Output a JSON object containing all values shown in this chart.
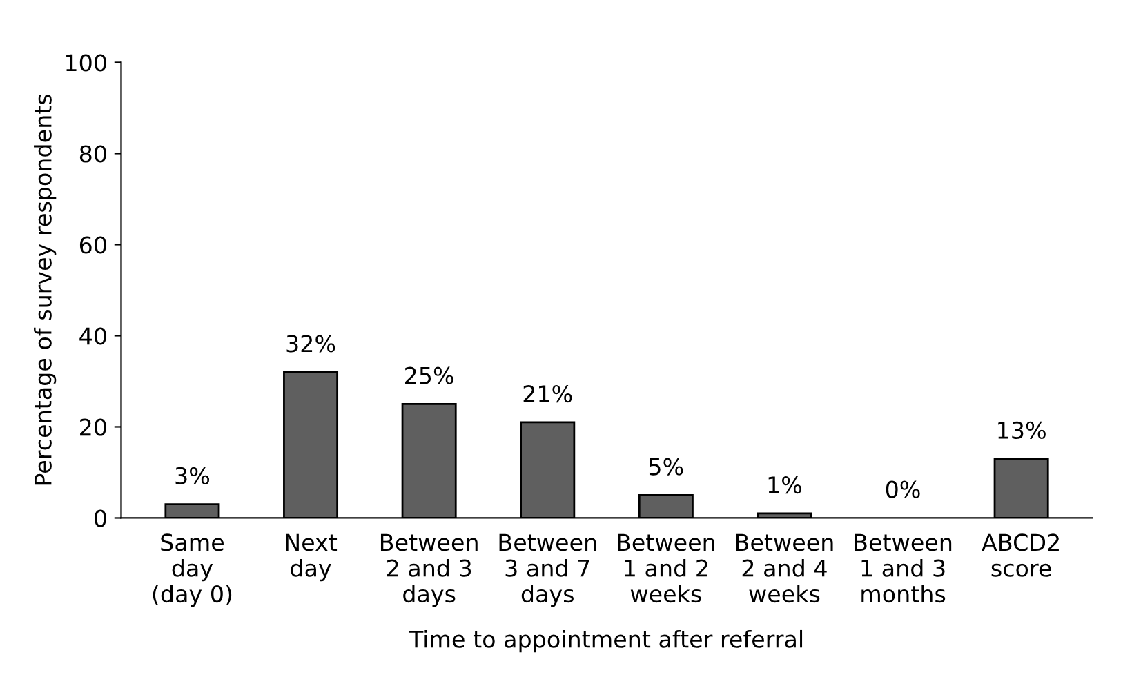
{
  "chart_data": {
    "type": "bar",
    "xlabel": "Time to appointment after referral",
    "ylabel": "Percentage of survey respondents",
    "categories": [
      "Same\nday\n(day 0)",
      "Next\nday",
      "Between\n2 and 3\ndays",
      "Between\n3 and 7\ndays",
      "Between\n1 and 2\nweeks",
      "Between\n2 and 4\nweeks",
      "Between\n1 and 3\nmonths",
      "ABCD2\nscore"
    ],
    "values": [
      3,
      32,
      25,
      21,
      5,
      1,
      0,
      13
    ],
    "value_labels": [
      "3%",
      "32%",
      "25%",
      "21%",
      "5%",
      "1%",
      "0%",
      "13%"
    ],
    "color": "#5f5f5f",
    "ylim": [
      0,
      100
    ],
    "yticks": [
      0,
      20,
      40,
      60,
      80,
      100
    ],
    "grid": false,
    "legend": false
  }
}
